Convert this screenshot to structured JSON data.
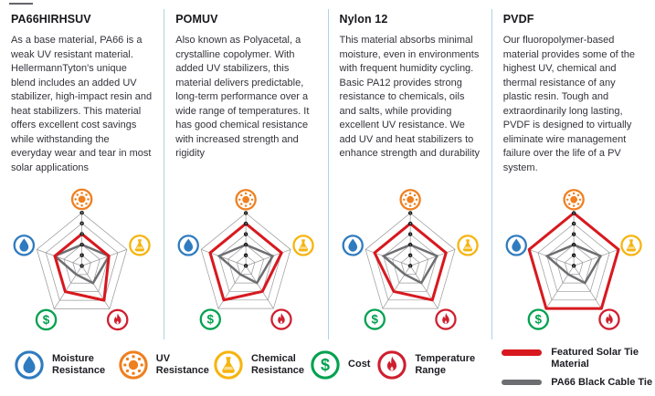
{
  "columns": [
    {
      "title": "PA66HIRHSUV",
      "description": "As a base material, PA66 is a weak UV resistant material. HellermannTyton's unique blend includes an added UV stabilizer, high-impact resin and heat stabilizers. This material offers excellent cost savings while withstanding the everyday wear and tear in most solar applications"
    },
    {
      "title": "POMUV",
      "description": "Also known as Polyacetal, a crystalline copolymer. With added UV stabilizers, this material delivers predictable, long-term performance over a wide range of temperatures. It has good chemical resistance with increased strength and rigidity"
    },
    {
      "title": "Nylon 12",
      "description": "This material absorbs minimal moisture, even in environments with frequent humidity cycling. Basic PA12 provides strong resistance to chemicals, oils and salts, while providing excellent UV resistance. We add UV and heat stabilizers to enhance strength and durability"
    },
    {
      "title": "PVDF",
      "description": "Our fluoropolymer-based material provides some of the highest UV, chemical and thermal resistance of any plastic resin. Tough and extraordinarily long lasting, PVDF is designed to virtually eliminate wire management failure over the life of a PV system."
    }
  ],
  "chart_data": {
    "type": "radar",
    "scale": {
      "min": 0,
      "max": 5,
      "tick_labels": [
        "5",
        "4",
        "3",
        "2",
        "1",
        "0"
      ]
    },
    "axes_order": [
      "uv",
      "chemical",
      "temperature",
      "cost",
      "moisture"
    ],
    "axes": {
      "uv": {
        "label": "UV Resistance",
        "color": "#ef7f1f",
        "icon": "sun-icon"
      },
      "chemical": {
        "label": "Chemical Resistance",
        "color": "#f6b40e",
        "icon": "flask-icon"
      },
      "temperature": {
        "label": "Temperature Range",
        "color": "#cf1f2f",
        "icon": "flame-icon"
      },
      "cost": {
        "label": "Cost",
        "color": "#00a14f",
        "icon": "dollar-icon"
      },
      "moisture": {
        "label": "Moisture Resistance",
        "color": "#2e7bbf",
        "icon": "droplet-icon"
      }
    },
    "featured_series_name": "Featured Solar Tie Material",
    "featured_color": "#d7191f",
    "reference_series": {
      "name": "PA66 Black Cable Tie",
      "color": "#6d6e71",
      "values": {
        "uv": 2,
        "chemical": 3,
        "temperature": 2,
        "cost": 1,
        "moisture": 3
      }
    },
    "charts": [
      {
        "material": "PA66HIRHSUV",
        "featured_values": {
          "uv": 3,
          "chemical": 3,
          "temperature": 4,
          "cost": 3,
          "moisture": 3
        }
      },
      {
        "material": "POMUV",
        "featured_values": {
          "uv": 4,
          "chemical": 4,
          "temperature": 3,
          "cost": 4,
          "moisture": 4
        }
      },
      {
        "material": "Nylon 12",
        "featured_values": {
          "uv": 4,
          "chemical": 4,
          "temperature": 4,
          "cost": 3,
          "moisture": 4
        }
      },
      {
        "material": "PVDF",
        "featured_values": {
          "uv": 5,
          "chemical": 5,
          "temperature": 5,
          "cost": 5,
          "moisture": 5
        }
      }
    ],
    "grid": {
      "rings": 5,
      "color": "#9b9b9b"
    }
  },
  "legend": {
    "attributes": [
      {
        "id": "moisture",
        "label": "Moisture Resistance"
      },
      {
        "id": "uv",
        "label": "UV Resistance"
      },
      {
        "id": "chemical",
        "label": "Chemical Resistance"
      },
      {
        "id": "cost",
        "label": "Cost"
      },
      {
        "id": "temperature",
        "label": "Temperature Range"
      }
    ],
    "featured_label": "Featured Solar Tie Material",
    "reference_label": "PA66 Black Cable Tie"
  }
}
